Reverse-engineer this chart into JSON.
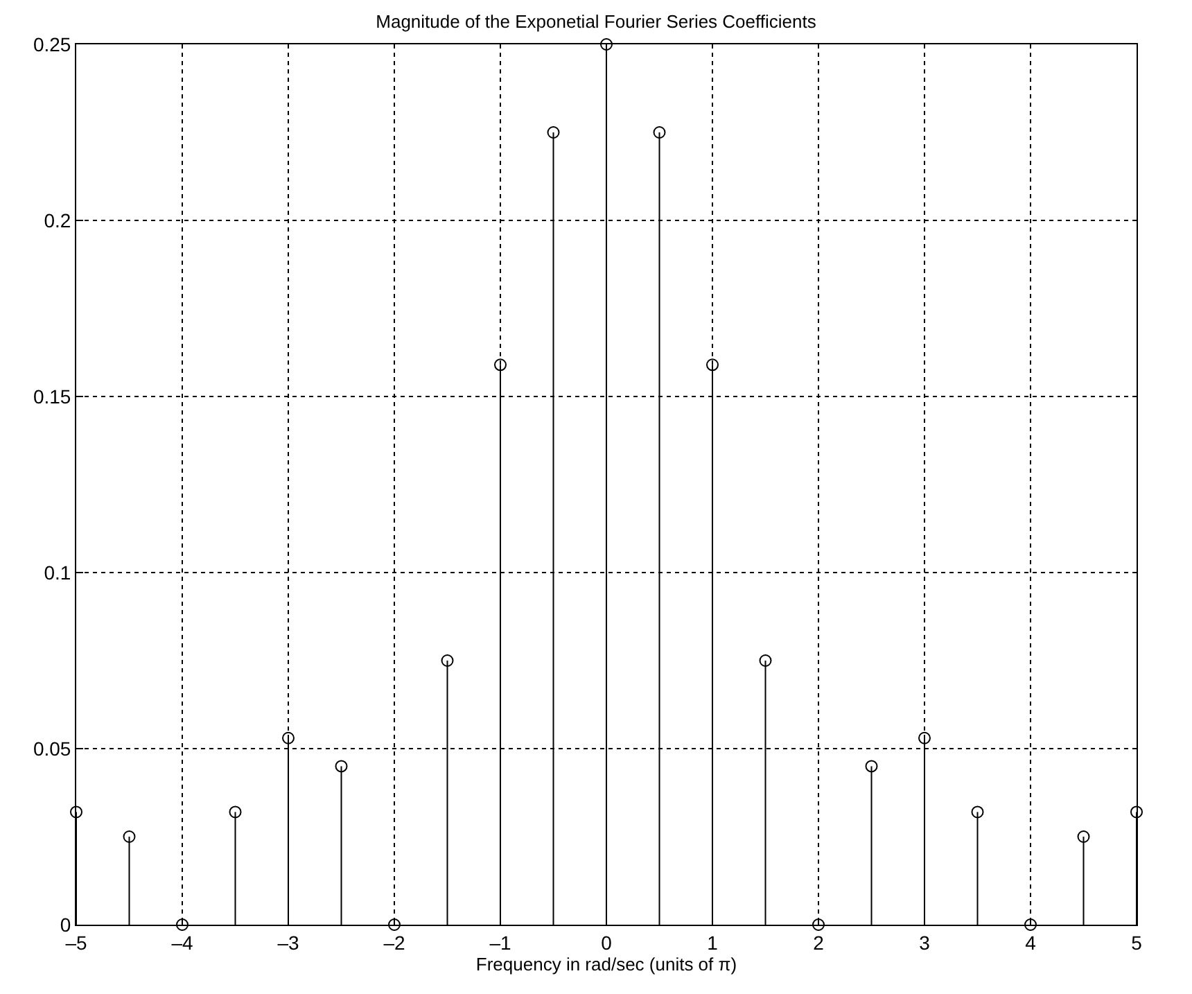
{
  "chart_data": {
    "type": "lollipop",
    "title": "Magnitude of the Exponetial Fourier Series Coefficients",
    "xlabel": "Frequency in rad/sec (units of π)",
    "x": [
      -5,
      -4.5,
      -4,
      -3.5,
      -3,
      -2.5,
      -2,
      -1.5,
      -1,
      -0.5,
      0,
      0.5,
      1,
      1.5,
      2,
      2.5,
      3,
      3.5,
      4,
      4.5,
      5
    ],
    "series": [
      {
        "color": "#000000",
        "values": [
          0.032,
          0.025,
          0,
          0.032,
          0.053,
          0.045,
          0,
          0.075,
          0.159,
          0.225,
          0.25,
          0.225,
          0.159,
          0.075,
          0,
          0.045,
          0.053,
          0.032,
          0,
          0.025,
          0.032
        ]
      }
    ],
    "xlim": [
      -5,
      5
    ],
    "xticks": [
      {
        "value": -5,
        "label": "–5"
      },
      {
        "value": -4,
        "label": "–4"
      },
      {
        "value": -3,
        "label": "–3"
      },
      {
        "value": -2,
        "label": "–2"
      },
      {
        "value": -1,
        "label": "–1"
      },
      0,
      1,
      2,
      3,
      4,
      5
    ],
    "ylim": [
      0,
      0.25
    ],
    "yticks": [
      0,
      0.05,
      0.1,
      0.15,
      0.2,
      0.25
    ],
    "grid": true,
    "marker": "circle"
  }
}
